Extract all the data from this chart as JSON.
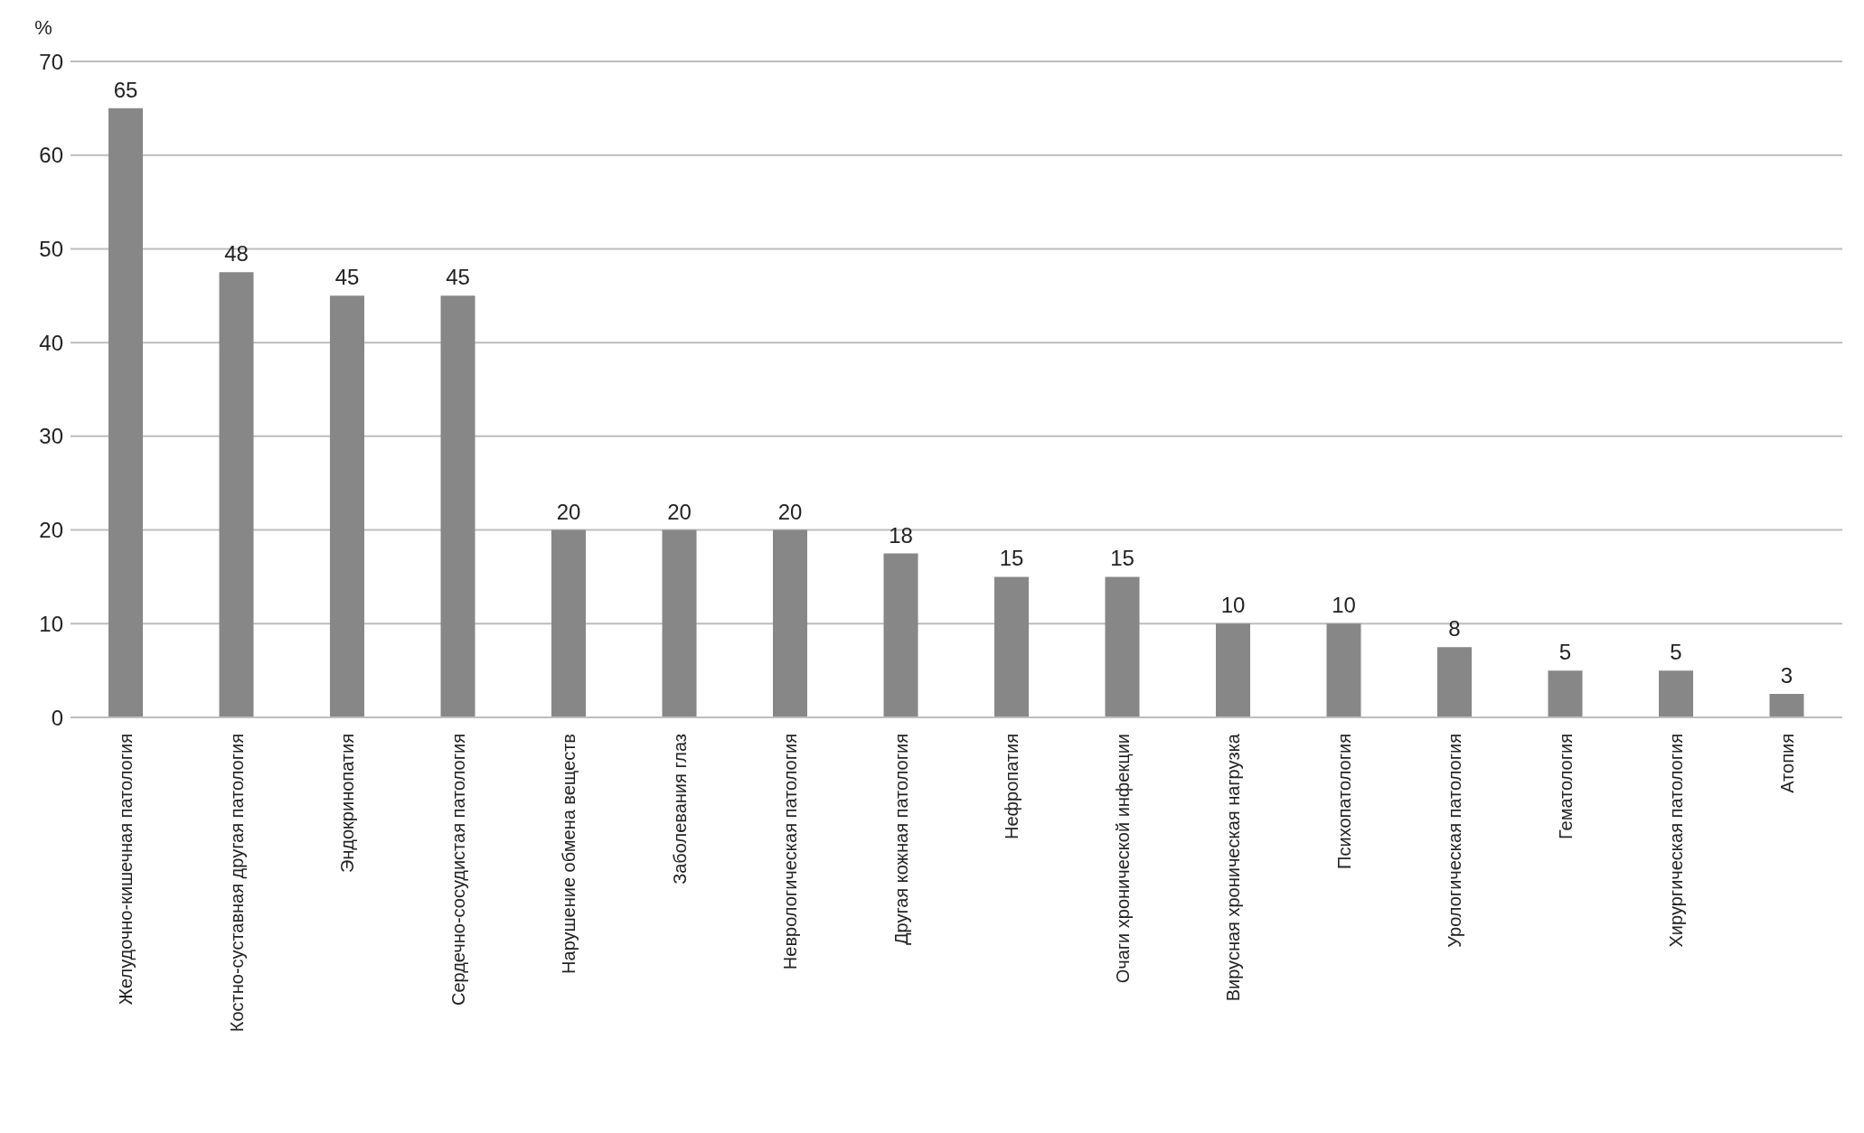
{
  "chart_data": {
    "type": "bar",
    "ylabel": "%",
    "categories": [
      "Желудочно-кишечная патология",
      "Костно-суставная другая патология",
      "Эндокринопатия",
      "Сердечно-сосудистая патология",
      "Нарушение обмена веществ",
      "Заболевания глаз",
      "Неврологическая патология",
      "Другая кожная патология",
      "Нефропатия",
      "Очаги хронической инфекции",
      "Вирусная хроническая нагрузка",
      "Психопатология",
      "Урологическая патология",
      "Гематология",
      "Хирургическая патология",
      "Атопия"
    ],
    "values": [
      65,
      47.5,
      45,
      45,
      20,
      20,
      20,
      17.5,
      15,
      15,
      10,
      10,
      7.5,
      5,
      5,
      2.5
    ],
    "value_labels": [
      "65",
      "48",
      "45",
      "45",
      "20",
      "20",
      "20",
      "18",
      "15",
      "15",
      "10",
      "10",
      "8",
      "5",
      "5",
      "3"
    ],
    "color": "#878787",
    "ylim": [
      0,
      70
    ],
    "yticks": [
      0,
      10,
      20,
      30,
      40,
      50,
      60,
      70
    ],
    "grid": "y",
    "legend": false
  }
}
